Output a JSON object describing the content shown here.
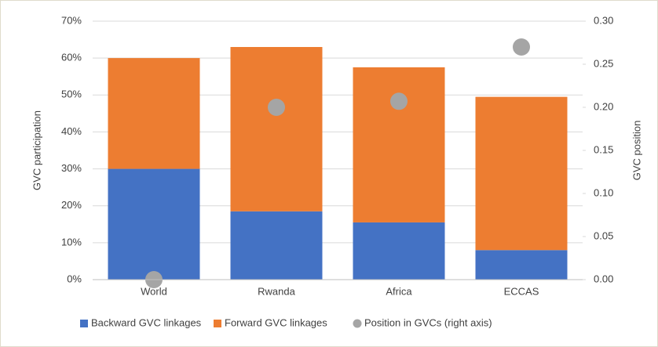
{
  "chart_data": {
    "type": "bar",
    "stacked": true,
    "categories": [
      "World",
      "Rwanda",
      "Africa",
      "ECCAS"
    ],
    "series": [
      {
        "name": "Backward GVC linkages",
        "color": "#4472c4",
        "values": [
          30,
          18.5,
          15.5,
          8
        ]
      },
      {
        "name": "Forward GVC linkages",
        "color": "#ed7d31",
        "values": [
          30,
          44.5,
          42,
          41.5
        ]
      },
      {
        "name": "Position in GVCs (right axis)",
        "color": "#a5a5a5",
        "type": "scatter",
        "axis": "y2",
        "values": [
          0.0,
          0.2,
          0.207,
          0.27
        ]
      }
    ],
    "ylabel": "GVC participation",
    "y2label": "GVC position",
    "ylim": [
      0,
      70
    ],
    "yticks": [
      {
        "value": 0,
        "label": "0%"
      },
      {
        "value": 10,
        "label": "10%"
      },
      {
        "value": 20,
        "label": "20%"
      },
      {
        "value": 30,
        "label": "30%"
      },
      {
        "value": 40,
        "label": "40%"
      },
      {
        "value": 50,
        "label": "50%"
      },
      {
        "value": 60,
        "label": "60%"
      },
      {
        "value": 70,
        "label": "70%"
      }
    ],
    "y2lim": [
      0,
      0.3
    ],
    "y2ticks": [
      {
        "value": 0,
        "label": "0.00"
      },
      {
        "value": 0.05,
        "label": "0.05"
      },
      {
        "value": 0.1,
        "label": "0.10"
      },
      {
        "value": 0.15,
        "label": "0.15"
      },
      {
        "value": 0.2,
        "label": "0.20"
      },
      {
        "value": 0.25,
        "label": "0.25"
      },
      {
        "value": 0.3,
        "label": "0.30"
      }
    ],
    "grid": true,
    "legend": "bottom"
  }
}
